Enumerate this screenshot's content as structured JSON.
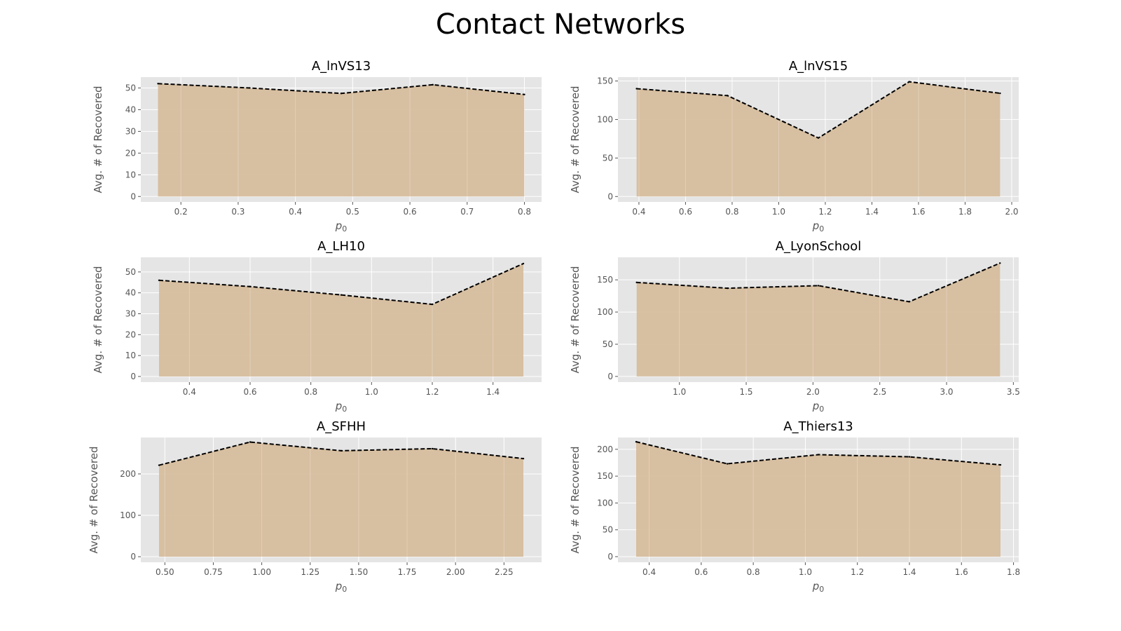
{
  "figure": {
    "title": "Contact Networks",
    "colors": {
      "plot_bg": "#e5e5e5",
      "grid": "#ffffff",
      "fill": "#d6bd9d",
      "line": "#000000",
      "tick_text": "#555555"
    }
  },
  "chart_data": [
    {
      "type": "area",
      "title": "A_lnVS13",
      "xlabel": "p0",
      "ylabel": "Avg. # of Recovered",
      "x": [
        0.16,
        0.32,
        0.48,
        0.64,
        0.8
      ],
      "y": [
        52,
        50,
        47.5,
        51.5,
        47
      ],
      "xlim": [
        0.13,
        0.83
      ],
      "ylim": [
        -2.5,
        55
      ],
      "xticks": [
        0.2,
        0.3,
        0.4,
        0.5,
        0.6,
        0.7,
        0.8
      ],
      "xtick_labels": [
        "0.2",
        "0.3",
        "0.4",
        "0.5",
        "0.6",
        "0.7",
        "0.8"
      ],
      "yticks": [
        0,
        10,
        20,
        30,
        40,
        50
      ],
      "ytick_labels": [
        "0",
        "10",
        "20",
        "30",
        "40",
        "50"
      ],
      "grid": true
    },
    {
      "type": "area",
      "title": "A_lnVS15",
      "xlabel": "p0",
      "ylabel": "Avg. # of Recovered",
      "x": [
        0.39,
        0.78,
        1.17,
        1.56,
        1.95
      ],
      "y": [
        140,
        131,
        76,
        149,
        134
      ],
      "xlim": [
        0.31,
        2.03
      ],
      "ylim": [
        -7,
        155
      ],
      "xticks": [
        0.4,
        0.6,
        0.8,
        1.0,
        1.2,
        1.4,
        1.6,
        1.8,
        2.0
      ],
      "xtick_labels": [
        "0.4",
        "0.6",
        "0.8",
        "1.0",
        "1.2",
        "1.4",
        "1.6",
        "1.8",
        "2.0"
      ],
      "yticks": [
        0,
        50,
        100,
        150
      ],
      "ytick_labels": [
        "0",
        "50",
        "100",
        "150"
      ],
      "grid": true
    },
    {
      "type": "area",
      "title": "A_LH10",
      "xlabel": "p0",
      "ylabel": "Avg. # of Recovered",
      "x": [
        0.3,
        0.6,
        0.9,
        1.2,
        1.5
      ],
      "y": [
        46,
        43,
        39,
        34.5,
        54
      ],
      "xlim": [
        0.24,
        1.56
      ],
      "ylim": [
        -2.7,
        57
      ],
      "xticks": [
        0.4,
        0.6,
        0.8,
        1.0,
        1.2,
        1.4
      ],
      "xtick_labels": [
        "0.4",
        "0.6",
        "0.8",
        "1.0",
        "1.2",
        "1.4"
      ],
      "yticks": [
        0,
        10,
        20,
        30,
        40,
        50
      ],
      "ytick_labels": [
        "0",
        "10",
        "20",
        "30",
        "40",
        "50"
      ],
      "grid": true
    },
    {
      "type": "area",
      "title": "A_LyonSchool",
      "xlabel": "p0",
      "ylabel": "Avg. # of Recovered",
      "x": [
        0.68,
        1.36,
        2.04,
        2.72,
        3.4
      ],
      "y": [
        146,
        137,
        141,
        116,
        176
      ],
      "xlim": [
        0.54,
        3.54
      ],
      "ylim": [
        -8.8,
        185
      ],
      "xticks": [
        1.0,
        1.5,
        2.0,
        2.5,
        3.0,
        3.5
      ],
      "xtick_labels": [
        "1.0",
        "1.5",
        "2.0",
        "2.5",
        "3.0",
        "3.5"
      ],
      "yticks": [
        0,
        50,
        100,
        150
      ],
      "ytick_labels": [
        "0",
        "50",
        "100",
        "150"
      ],
      "grid": true
    },
    {
      "type": "area",
      "title": "A_SFHH",
      "xlabel": "p0",
      "ylabel": "Avg. # of Recovered",
      "x": [
        0.47,
        0.94,
        1.41,
        1.88,
        2.35
      ],
      "y": [
        221,
        277,
        256,
        261,
        237
      ],
      "xlim": [
        0.376,
        2.444
      ],
      "ylim": [
        -13.5,
        288
      ],
      "xticks": [
        0.5,
        0.75,
        1.0,
        1.25,
        1.5,
        1.75,
        2.0,
        2.25
      ],
      "xtick_labels": [
        "0.50",
        "0.75",
        "1.00",
        "1.25",
        "1.50",
        "1.75",
        "2.00",
        "2.25"
      ],
      "yticks": [
        0,
        100,
        200
      ],
      "ytick_labels": [
        "0",
        "100",
        "200"
      ],
      "grid": true
    },
    {
      "type": "area",
      "title": "A_Thiers13",
      "xlabel": "p0",
      "ylabel": "Avg. # of Recovered",
      "x": [
        0.35,
        0.7,
        1.05,
        1.4,
        1.75
      ],
      "y": [
        214,
        173,
        190,
        186,
        171
      ],
      "xlim": [
        0.28,
        1.82
      ],
      "ylim": [
        -10.5,
        222
      ],
      "xticks": [
        0.4,
        0.6,
        0.8,
        1.0,
        1.2,
        1.4,
        1.6,
        1.8
      ],
      "xtick_labels": [
        "0.4",
        "0.6",
        "0.8",
        "1.0",
        "1.2",
        "1.4",
        "1.6",
        "1.8"
      ],
      "yticks": [
        0,
        50,
        100,
        150,
        200
      ],
      "ytick_labels": [
        "0",
        "50",
        "100",
        "150",
        "200"
      ],
      "grid": true
    }
  ]
}
